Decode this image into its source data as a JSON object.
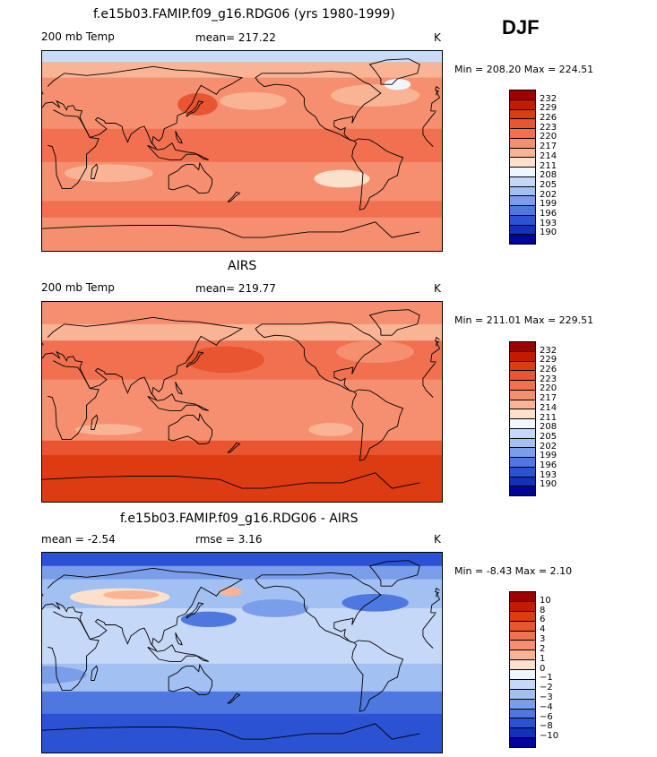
{
  "season": "DJF",
  "units": "K",
  "panels": [
    {
      "title": "f.e15b03.FAMIP.f09_g16.RDG06 (yrs 1980-1999)",
      "left_label": "200 mb Temp",
      "center_label": "mean= 217.22",
      "right_label": "K",
      "minmax": "Min = 208.20 Max = 224.51",
      "colorbar": {
        "labels": [
          "232",
          "229",
          "226",
          "223",
          "220",
          "217",
          "214",
          "211",
          "208",
          "205",
          "202",
          "199",
          "196",
          "193",
          "190"
        ],
        "colors": [
          "#9e0000",
          "#c41a00",
          "#dd3b12",
          "#e85530",
          "#f07050",
          "#f58f6f",
          "#f9b395",
          "#fce0cc",
          "#f0f6ff",
          "#c6d8f7",
          "#a3c0f2",
          "#7a9ee9",
          "#4e77e0",
          "#2a52d2",
          "#1230b8",
          "#00059a"
        ]
      },
      "map": {
        "base": "#f58f6f",
        "bands": [
          {
            "color": "#c8dcf8",
            "lat_from": 90,
            "lat_to": 80
          },
          {
            "color": "#f9b395",
            "lat_from": 80,
            "lat_to": 66
          },
          {
            "color": "#f58f6f",
            "lat_from": 66,
            "lat_to": 20
          },
          {
            "color": "#f07050",
            "lat_from": 20,
            "lat_to": -10
          },
          {
            "color": "#f58f6f",
            "lat_from": -10,
            "lat_to": -45
          },
          {
            "color": "#f07050",
            "lat_from": -45,
            "lat_to": -60
          },
          {
            "color": "#f58f6f",
            "lat_from": -60,
            "lat_to": -90
          }
        ],
        "blobs": [
          {
            "color": "#e85530",
            "lon": 140,
            "lat": 42,
            "rx": 18,
            "ry": 10
          },
          {
            "color": "#f9b395",
            "lon": -60,
            "lat": 50,
            "rx": 40,
            "ry": 10
          },
          {
            "color": "#f0f6ff",
            "lon": -40,
            "lat": 60,
            "rx": 12,
            "ry": 5
          },
          {
            "color": "#f9b395",
            "lon": -170,
            "lat": 45,
            "rx": 30,
            "ry": 8
          },
          {
            "color": "#fce0cc",
            "lon": -90,
            "lat": -25,
            "rx": 25,
            "ry": 8
          },
          {
            "color": "#f9b395",
            "lon": 60,
            "lat": -20,
            "rx": 40,
            "ry": 8
          }
        ]
      }
    },
    {
      "title": "AIRS",
      "left_label": "200 mb Temp",
      "center_label": "mean= 219.77",
      "right_label": "K",
      "minmax": "Min = 211.01 Max = 229.51",
      "colorbar": {
        "labels": [
          "232",
          "229",
          "226",
          "223",
          "220",
          "217",
          "214",
          "211",
          "208",
          "205",
          "202",
          "199",
          "196",
          "193",
          "190"
        ],
        "colors": [
          "#9e0000",
          "#c41a00",
          "#dd3b12",
          "#e85530",
          "#f07050",
          "#f58f6f",
          "#f9b395",
          "#fce0cc",
          "#f0f6ff",
          "#c6d8f7",
          "#a3c0f2",
          "#7a9ee9",
          "#4e77e0",
          "#2a52d2",
          "#1230b8",
          "#00059a"
        ]
      },
      "map": {
        "base": "#f07050",
        "bands": [
          {
            "color": "#f58f6f",
            "lat_from": 90,
            "lat_to": 70
          },
          {
            "color": "#f9b395",
            "lat_from": 70,
            "lat_to": 55
          },
          {
            "color": "#f07050",
            "lat_from": 55,
            "lat_to": 20
          },
          {
            "color": "#f58f6f",
            "lat_from": 20,
            "lat_to": -35
          },
          {
            "color": "#e85530",
            "lat_from": -35,
            "lat_to": -48
          },
          {
            "color": "#dd3b12",
            "lat_from": -48,
            "lat_to": -90
          }
        ],
        "blobs": [
          {
            "color": "#e85530",
            "lon": 165,
            "lat": 38,
            "rx": 35,
            "ry": 12
          },
          {
            "color": "#f58f6f",
            "lon": -60,
            "lat": 45,
            "rx": 35,
            "ry": 10
          },
          {
            "color": "#f9b395",
            "lon": -100,
            "lat": -25,
            "rx": 20,
            "ry": 6
          },
          {
            "color": "#f9b395",
            "lon": 60,
            "lat": -25,
            "rx": 30,
            "ry": 5
          }
        ]
      }
    },
    {
      "title": "f.e15b03.FAMIP.f09_g16.RDG06 - AIRS",
      "left_label": "mean =   -2.54",
      "center_label": "rmse =    3.16",
      "right_label": "K",
      "minmax": "Min =  -8.43 Max =   2.10",
      "colorbar": {
        "labels": [
          "10",
          "8",
          "6",
          "4",
          "3",
          "2",
          "1",
          "0",
          "−1",
          "−2",
          "−3",
          "−4",
          "−6",
          "−8",
          "−10"
        ],
        "colors": [
          "#9e0000",
          "#c41a00",
          "#dd3b12",
          "#e85530",
          "#f07050",
          "#f58f6f",
          "#f9b395",
          "#fce0cc",
          "#f0f6ff",
          "#c6d8f7",
          "#a3c0f2",
          "#7a9ee9",
          "#4e77e0",
          "#2a52d2",
          "#1230b8",
          "#00059a"
        ]
      },
      "map": {
        "base": "#a3c0f2",
        "bands": [
          {
            "color": "#2a52d2",
            "lat_from": 90,
            "lat_to": 78
          },
          {
            "color": "#7a9ee9",
            "lat_from": 78,
            "lat_to": 66
          },
          {
            "color": "#a3c0f2",
            "lat_from": 66,
            "lat_to": 40
          },
          {
            "color": "#c6d8f7",
            "lat_from": 40,
            "lat_to": -10
          },
          {
            "color": "#a3c0f2",
            "lat_from": -10,
            "lat_to": -35
          },
          {
            "color": "#4e77e0",
            "lat_from": -35,
            "lat_to": -55
          },
          {
            "color": "#2a52d2",
            "lat_from": -55,
            "lat_to": -90
          }
        ],
        "blobs": [
          {
            "color": "#fce0cc",
            "lon": 70,
            "lat": 50,
            "rx": 45,
            "ry": 8
          },
          {
            "color": "#f9b395",
            "lon": 80,
            "lat": 52,
            "rx": 25,
            "ry": 4
          },
          {
            "color": "#f9b395",
            "lon": 170,
            "lat": 55,
            "rx": 10,
            "ry": 4
          },
          {
            "color": "#4e77e0",
            "lon": 150,
            "lat": 30,
            "rx": 25,
            "ry": 7
          },
          {
            "color": "#4e77e0",
            "lon": -60,
            "lat": 45,
            "rx": 30,
            "ry": 8
          },
          {
            "color": "#7a9ee9",
            "lon": -150,
            "lat": 40,
            "rx": 30,
            "ry": 8
          },
          {
            "color": "#7a9ee9",
            "lon": 0,
            "lat": -20,
            "rx": 40,
            "ry": 8
          }
        ]
      }
    }
  ]
}
